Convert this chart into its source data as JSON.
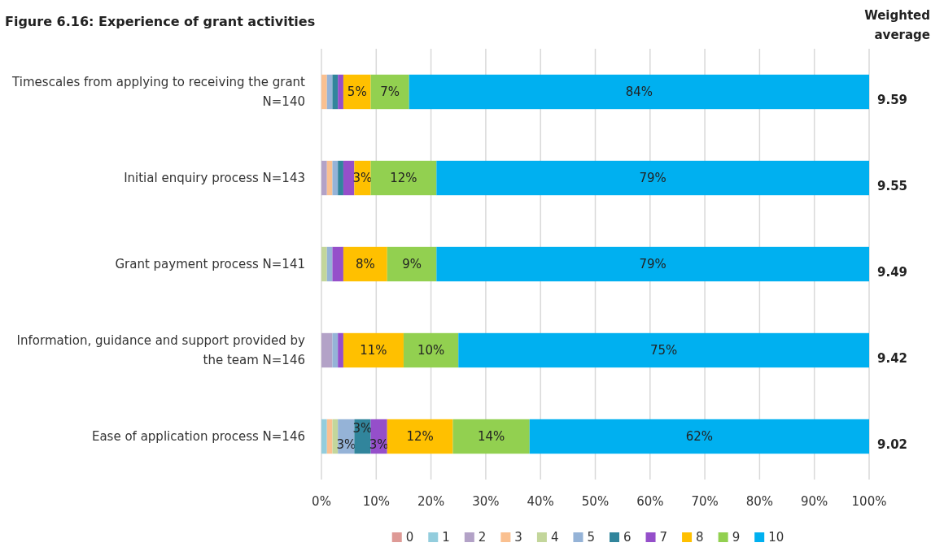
{
  "chart_data": {
    "type": "bar",
    "orientation": "horizontal",
    "stacked": true,
    "title": "Figure 6.16: Experience of grant activities",
    "categories": [
      "Timescales from applying to receiving the grant N=140",
      "Initial enquiry process N=143",
      "Grant payment process N=141",
      "Information, guidance and support provided by the team N=146",
      "Ease of application process N=146"
    ],
    "series": [
      {
        "name": "0",
        "color": "#de9a96",
        "values": [
          0,
          0,
          0,
          0,
          0
        ]
      },
      {
        "name": "1",
        "color": "#93cddd",
        "values": [
          0,
          0,
          0,
          0,
          1
        ]
      },
      {
        "name": "2",
        "color": "#b3a2c7",
        "values": [
          0,
          1,
          0,
          2,
          0
        ]
      },
      {
        "name": "3",
        "color": "#fac090",
        "values": [
          1,
          1,
          0,
          0,
          1
        ]
      },
      {
        "name": "4",
        "color": "#c3d69b",
        "values": [
          0,
          0,
          1,
          0,
          1
        ]
      },
      {
        "name": "5",
        "color": "#95b3d7",
        "values": [
          1,
          1,
          1,
          1,
          3
        ],
        "value_labels": [
          null,
          null,
          null,
          null,
          "3%"
        ]
      },
      {
        "name": "6",
        "color": "#31859c",
        "values": [
          1,
          1,
          0,
          0,
          3
        ],
        "value_labels": [
          null,
          null,
          null,
          null,
          "3%"
        ]
      },
      {
        "name": "7",
        "color": "#954fca",
        "values": [
          1,
          2,
          2,
          1,
          3
        ],
        "value_labels": [
          null,
          null,
          null,
          null,
          "3%"
        ]
      },
      {
        "name": "8",
        "color": "#ffc000",
        "values": [
          5,
          3,
          8,
          11,
          12
        ],
        "value_labels": [
          "5%",
          "3%",
          "8%",
          "11%",
          "12%"
        ]
      },
      {
        "name": "9",
        "color": "#92d050",
        "values": [
          7,
          12,
          9,
          10,
          14
        ],
        "value_labels": [
          "7%",
          "12%",
          "9%",
          "10%",
          "14%"
        ]
      },
      {
        "name": "10",
        "color": "#00b0f0",
        "values": [
          84,
          79,
          79,
          75,
          62
        ],
        "value_labels": [
          "84%",
          "79%",
          "79%",
          "75%",
          "62%"
        ]
      }
    ],
    "xlim": [
      0,
      100
    ],
    "xticks": [
      {
        "value": 0,
        "label": "0%"
      },
      {
        "value": 10,
        "label": "10%"
      },
      {
        "value": 20,
        "label": "20%"
      },
      {
        "value": 30,
        "label": "30%"
      },
      {
        "value": 40,
        "label": "40%"
      },
      {
        "value": 50,
        "label": "50%"
      },
      {
        "value": 60,
        "label": "60%"
      },
      {
        "value": 70,
        "label": "70%"
      },
      {
        "value": 80,
        "label": "80%"
      },
      {
        "value": 90,
        "label": "90%"
      },
      {
        "value": 100,
        "label": "100%"
      }
    ],
    "grid": "x",
    "legend": "bottom",
    "annotations": [
      "Weighted average",
      "9.59",
      "9.55",
      "9.49",
      "9.42",
      "9.02"
    ]
  }
}
